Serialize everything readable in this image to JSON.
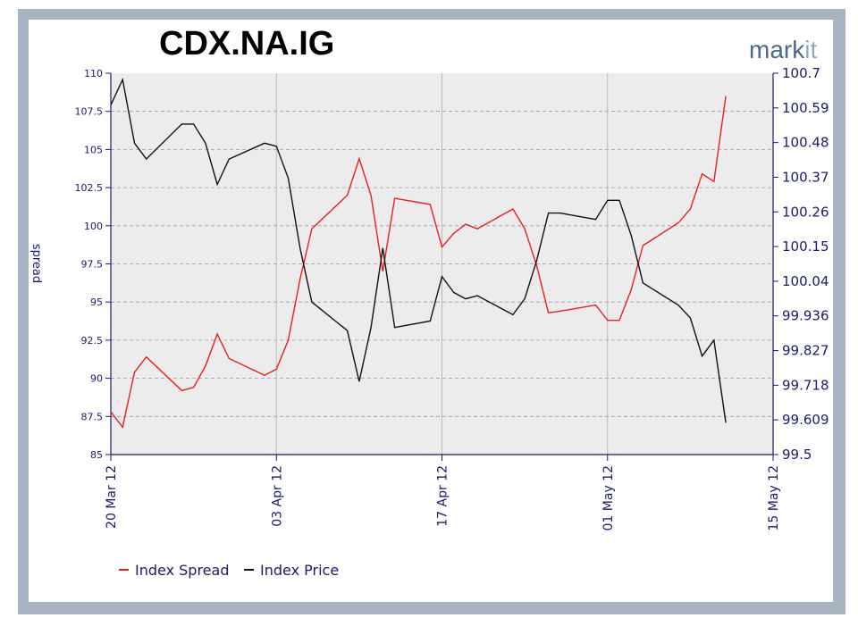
{
  "chart_data": {
    "type": "line",
    "title": "CDX.NA.IG",
    "logo": "markit",
    "ylabel_left": "spread",
    "ylim_left": [
      85,
      110
    ],
    "ylim_right": [
      99.5,
      100.7
    ],
    "yticks_left": [
      "85",
      "87.5",
      "90",
      "92.5",
      "95",
      "97.5",
      "100",
      "102.5",
      "105",
      "107.5",
      "110"
    ],
    "yticks_right": [
      "99.5",
      "99.609",
      "99.718",
      "99.827",
      "99.936",
      "100.04",
      "100.15",
      "100.26",
      "100.37",
      "100.48",
      "100.59",
      "100.7"
    ],
    "xlim": [
      "2012-03-20",
      "2012-05-15"
    ],
    "xticks": [
      {
        "date": "2012-03-20",
        "label": "20 Mar 12"
      },
      {
        "date": "2012-04-03",
        "label": "03 Apr 12"
      },
      {
        "date": "2012-04-17",
        "label": "17 Apr 12"
      },
      {
        "date": "2012-05-01",
        "label": "01 May 12"
      },
      {
        "date": "2012-05-15",
        "label": "15 May 12"
      }
    ],
    "grid": true,
    "legend_position": "bottom-left",
    "series": [
      {
        "name": "Index Spread",
        "color": "#e8201c",
        "axis": "left",
        "points": [
          [
            "2012-03-20",
            87.8
          ],
          [
            "2012-03-21",
            86.8
          ],
          [
            "2012-03-22",
            90.4
          ],
          [
            "2012-03-23",
            91.4
          ],
          [
            "2012-03-26",
            89.2
          ],
          [
            "2012-03-27",
            89.4
          ],
          [
            "2012-03-28",
            90.8
          ],
          [
            "2012-03-29",
            92.9
          ],
          [
            "2012-03-30",
            91.3
          ],
          [
            "2012-04-02",
            90.2
          ],
          [
            "2012-04-03",
            90.6
          ],
          [
            "2012-04-04",
            92.5
          ],
          [
            "2012-04-05",
            96.5
          ],
          [
            "2012-04-06",
            99.8
          ],
          [
            "2012-04-09",
            102.0
          ],
          [
            "2012-04-10",
            104.4
          ],
          [
            "2012-04-11",
            102.0
          ],
          [
            "2012-04-12",
            97.0
          ],
          [
            "2012-04-13",
            101.8
          ],
          [
            "2012-04-16",
            101.4
          ],
          [
            "2012-04-17",
            98.6
          ],
          [
            "2012-04-18",
            99.5
          ],
          [
            "2012-04-19",
            100.1
          ],
          [
            "2012-04-20",
            99.8
          ],
          [
            "2012-04-23",
            101.1
          ],
          [
            "2012-04-24",
            99.8
          ],
          [
            "2012-04-25",
            97.4
          ],
          [
            "2012-04-26",
            94.3
          ],
          [
            "2012-04-27",
            94.4
          ],
          [
            "2012-04-30",
            94.8
          ],
          [
            "2012-05-01",
            93.8
          ],
          [
            "2012-05-02",
            93.8
          ],
          [
            "2012-05-03",
            95.8
          ],
          [
            "2012-05-04",
            98.7
          ],
          [
            "2012-05-07",
            100.2
          ],
          [
            "2012-05-08",
            101.1
          ],
          [
            "2012-05-09",
            103.4
          ],
          [
            "2012-05-10",
            102.9
          ],
          [
            "2012-05-11",
            108.5
          ]
        ]
      },
      {
        "name": "Index Price",
        "color": "#111111",
        "axis": "right",
        "points": [
          [
            "2012-03-20",
            100.6
          ],
          [
            "2012-03-21",
            100.68
          ],
          [
            "2012-03-22",
            100.48
          ],
          [
            "2012-03-23",
            100.43
          ],
          [
            "2012-03-26",
            100.54
          ],
          [
            "2012-03-27",
            100.54
          ],
          [
            "2012-03-28",
            100.48
          ],
          [
            "2012-03-29",
            100.35
          ],
          [
            "2012-03-30",
            100.43
          ],
          [
            "2012-04-02",
            100.48
          ],
          [
            "2012-04-03",
            100.47
          ],
          [
            "2012-04-04",
            100.37
          ],
          [
            "2012-04-05",
            100.15
          ],
          [
            "2012-04-06",
            99.98
          ],
          [
            "2012-04-09",
            99.89
          ],
          [
            "2012-04-10",
            99.73
          ],
          [
            "2012-04-11",
            99.9
          ],
          [
            "2012-04-12",
            100.15
          ],
          [
            "2012-04-13",
            99.9
          ],
          [
            "2012-04-16",
            99.92
          ],
          [
            "2012-04-17",
            100.06
          ],
          [
            "2012-04-18",
            100.01
          ],
          [
            "2012-04-19",
            99.99
          ],
          [
            "2012-04-20",
            100.0
          ],
          [
            "2012-04-23",
            99.94
          ],
          [
            "2012-04-24",
            99.99
          ],
          [
            "2012-04-25",
            100.11
          ],
          [
            "2012-04-26",
            100.26
          ],
          [
            "2012-04-27",
            100.26
          ],
          [
            "2012-04-30",
            100.24
          ],
          [
            "2012-05-01",
            100.3
          ],
          [
            "2012-05-02",
            100.3
          ],
          [
            "2012-05-03",
            100.19
          ],
          [
            "2012-05-04",
            100.04
          ],
          [
            "2012-05-07",
            99.97
          ],
          [
            "2012-05-08",
            99.93
          ],
          [
            "2012-05-09",
            99.81
          ],
          [
            "2012-05-10",
            99.86
          ],
          [
            "2012-05-11",
            99.6
          ]
        ]
      }
    ]
  }
}
